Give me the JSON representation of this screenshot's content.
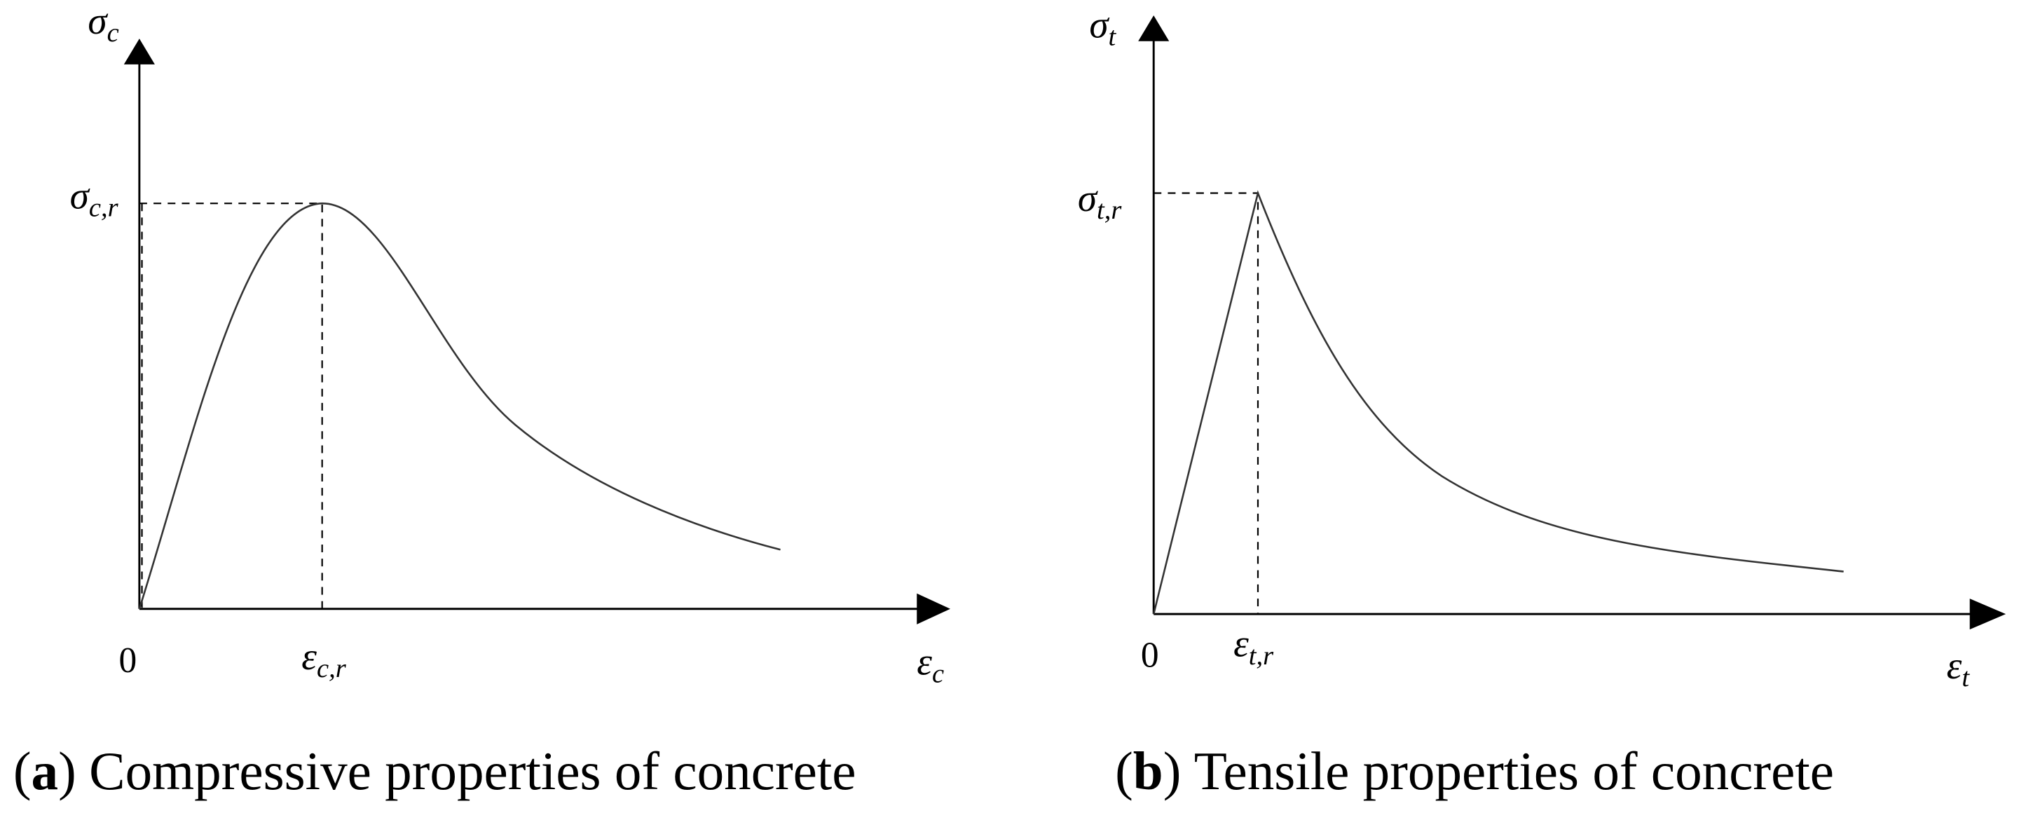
{
  "panels": [
    {
      "y_axis": {
        "symbol": "σ",
        "sub": "c"
      },
      "x_axis": {
        "symbol": "ε",
        "sub": "c"
      },
      "peak_y": {
        "symbol": "σ",
        "sub": "c,r"
      },
      "peak_x": {
        "symbol": "ε",
        "sub": "c,r"
      },
      "origin": "0",
      "caption": {
        "open": "(",
        "letter": "a",
        "close": ")",
        "text": "Compressive properties of concrete"
      }
    },
    {
      "y_axis": {
        "symbol": "σ",
        "sub": "t"
      },
      "x_axis": {
        "symbol": "ε",
        "sub": "t"
      },
      "peak_y": {
        "symbol": "σ",
        "sub": "t,r"
      },
      "peak_x": {
        "symbol": "ε",
        "sub": "t,r"
      },
      "origin": "0",
      "caption": {
        "open": "(",
        "letter": "b",
        "close": ")",
        "text": "Tensile properties of concrete"
      }
    }
  ]
}
